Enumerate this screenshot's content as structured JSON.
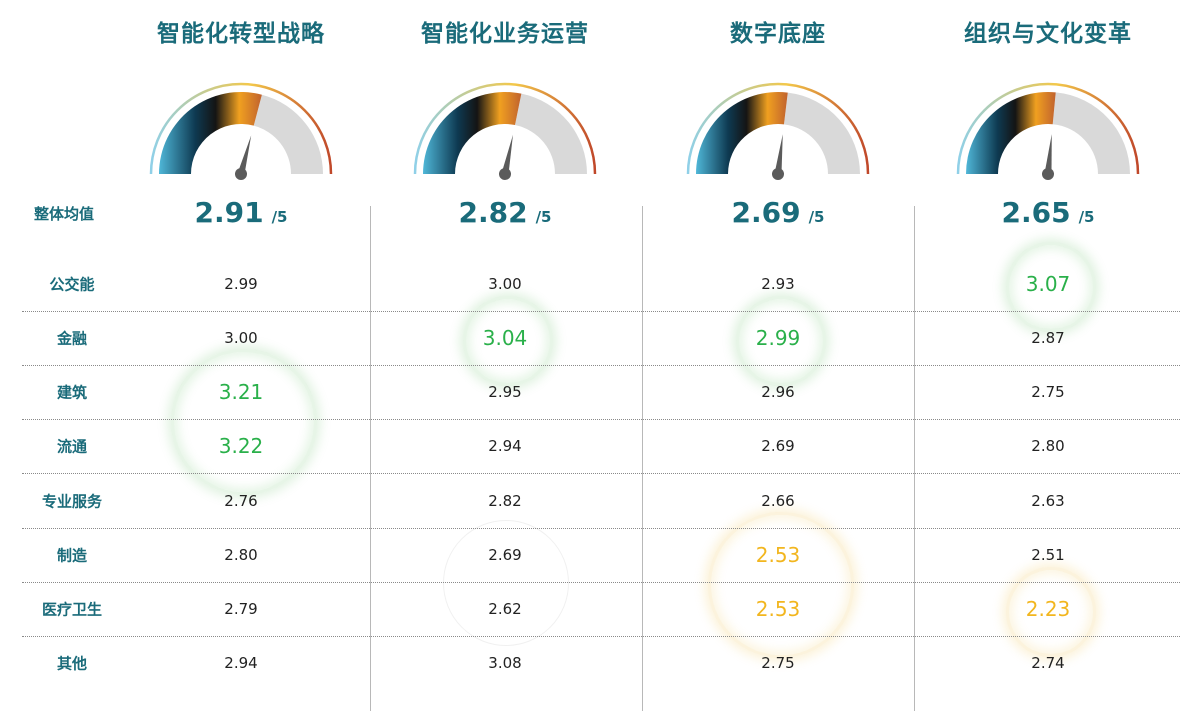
{
  "chart_data": {
    "type": "table",
    "columns": [
      {
        "title": "智能化转型战略",
        "overall": 2.91,
        "overall_text": "2.91"
      },
      {
        "title": "智能化业务运营",
        "overall": 2.82,
        "overall_text": "2.82"
      },
      {
        "title": "数字底座",
        "overall": 2.69,
        "overall_text": "2.69"
      },
      {
        "title": "组织与文化变革",
        "overall": 2.65,
        "overall_text": "2.65"
      }
    ],
    "overall_label": "整体均值",
    "scale_suffix": "/5",
    "scale_max": 5,
    "rows": [
      {
        "label": "公交能",
        "values": [
          "2.99",
          "3.00",
          "2.93",
          "3.07"
        ]
      },
      {
        "label": "金融",
        "values": [
          "3.00",
          "3.04",
          "2.99",
          "2.87"
        ]
      },
      {
        "label": "建筑",
        "values": [
          "3.21",
          "2.95",
          "2.96",
          "2.75"
        ]
      },
      {
        "label": "流通",
        "values": [
          "3.22",
          "2.94",
          "2.69",
          "2.80"
        ]
      },
      {
        "label": "专业服务",
        "values": [
          "2.76",
          "2.82",
          "2.66",
          "2.63"
        ]
      },
      {
        "label": "制造",
        "values": [
          "2.80",
          "2.69",
          "2.53",
          "2.51"
        ]
      },
      {
        "label": "医疗卫生",
        "values": [
          "2.79",
          "2.62",
          "2.53",
          "2.23"
        ]
      },
      {
        "label": "其他",
        "values": [
          "2.94",
          "3.08",
          "2.75",
          "2.74"
        ]
      }
    ],
    "highlight_high": [
      [
        0,
        3
      ],
      [
        1,
        1
      ],
      [
        1,
        2
      ],
      [
        2,
        0
      ],
      [
        3,
        0
      ]
    ],
    "highlight_low": [
      [
        5,
        2
      ],
      [
        6,
        2
      ],
      [
        6,
        3
      ]
    ],
    "colors": {
      "title": "#1a6b7a",
      "high": "#2ab04a",
      "low": "#f2b61f",
      "gauge_track": "#d9d9d9",
      "needle": "#5b5b5b"
    }
  }
}
